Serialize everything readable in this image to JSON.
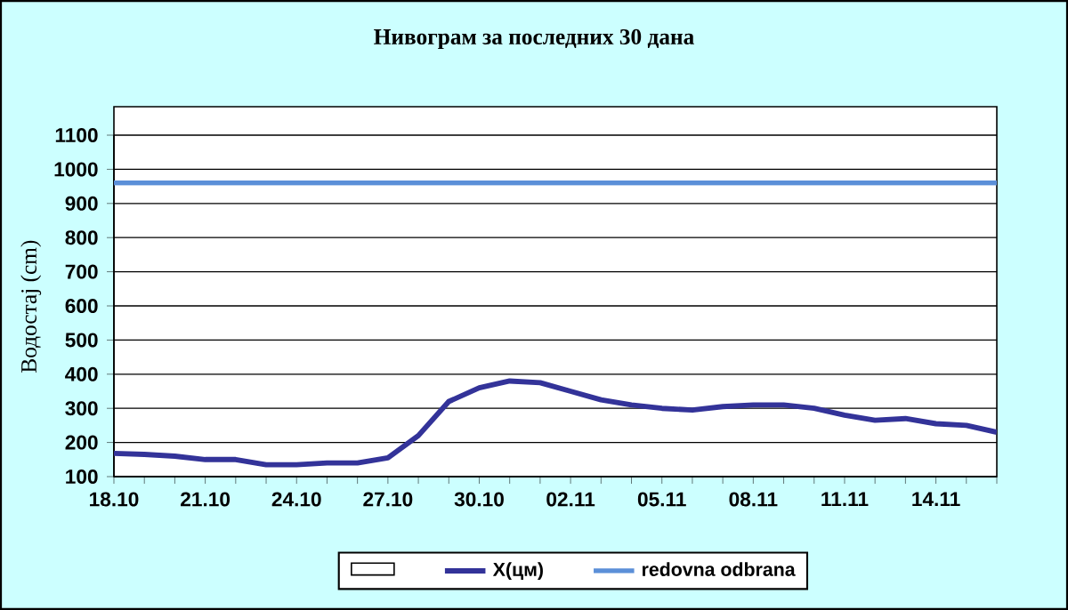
{
  "chart_data": {
    "type": "line",
    "title": "Нивограм за последних 30 дана",
    "ylabel": "Водостај (cm)",
    "categories": [
      "18.10",
      null,
      null,
      "21.10",
      null,
      null,
      "24.10",
      null,
      null,
      "27.10",
      null,
      null,
      "30.10",
      null,
      null,
      "02.11",
      null,
      null,
      "05.11",
      null,
      null,
      "08.11",
      null,
      null,
      "11.11",
      null,
      null,
      "14.11",
      null,
      null
    ],
    "series": [
      {
        "name": "X(цм)",
        "color": "#333399",
        "values": [
          168,
          165,
          160,
          150,
          150,
          135,
          135,
          140,
          140,
          155,
          220,
          320,
          360,
          380,
          375,
          350,
          325,
          310,
          300,
          295,
          305,
          310,
          310,
          300,
          280,
          265,
          270,
          255,
          250,
          230
        ]
      }
    ],
    "ylim": [
      100,
      1100
    ],
    "yticks": [
      100,
      200,
      300,
      400,
      500,
      600,
      700,
      800,
      900,
      1000,
      1100
    ],
    "ref_lines": [
      {
        "axis": "y",
        "value": 960,
        "label": "redovna odbrana",
        "color": "#5b8fd8"
      }
    ],
    "grid": "y",
    "legend": "bottom",
    "marker": "none",
    "line_style": "solid"
  }
}
